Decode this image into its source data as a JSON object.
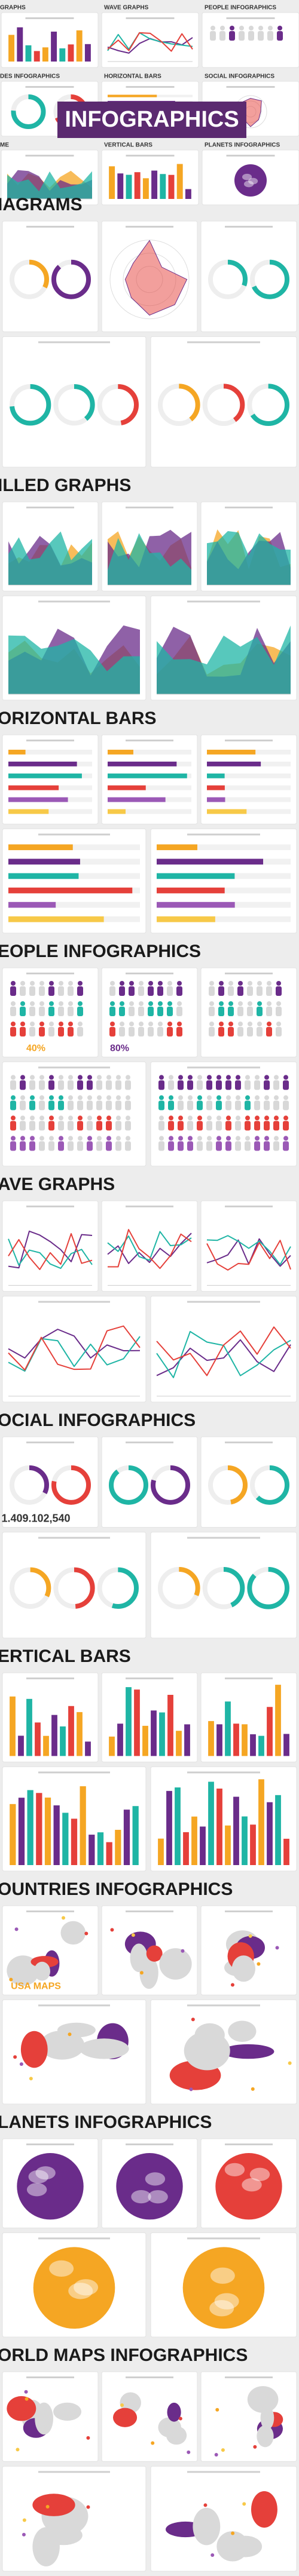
{
  "header": {
    "title": "INFOGRAPHICS",
    "thumbnails": [
      "GRAPHS",
      "WAVE GRAPHS",
      "PEOPLE INFOGRAPHICS",
      "DES INFOGRAPHICS",
      "HORIZONTAL BARS",
      "SOCIAL INFOGRAPHICS",
      "ME",
      "VERTICAL BARS",
      "PLANETS INFOGRAPHICS"
    ]
  },
  "sections": [
    {
      "title": "IAGRAMS",
      "labels": []
    },
    {
      "title": "ILLED GRAPHS",
      "labels": []
    },
    {
      "title": "ORIZONTAL BARS",
      "labels": []
    },
    {
      "title": "EOPLE INFOGRAPHICS",
      "labels": [
        "40%",
        "80%"
      ]
    },
    {
      "title": "AVE GRAPHS",
      "labels": []
    },
    {
      "title": "OCIAL INFOGRAPHICS",
      "labels": [
        "1.409.102,540"
      ]
    },
    {
      "title": "ERTICAL BARS",
      "labels": []
    },
    {
      "title": "OUNTRIES INFOGRAPHICS",
      "labels": [
        "USA MAPS"
      ]
    },
    {
      "title": "LANETS INFOGRAPHICS",
      "labels": []
    },
    {
      "title": "ORLD MAPS INFOGRAPHICS",
      "labels": []
    }
  ]
}
